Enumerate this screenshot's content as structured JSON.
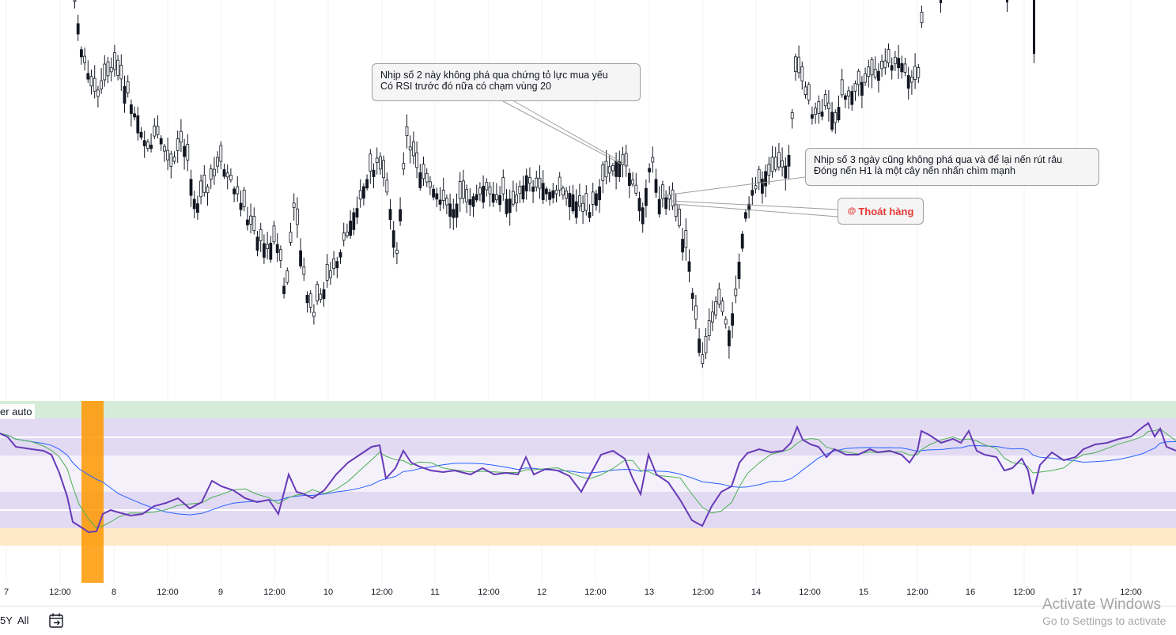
{
  "colors": {
    "candle": "#131722",
    "rsi_line": "#673ab7",
    "rsi_ma_fast": "#4caf50",
    "rsi_ma_slow": "#2962ff",
    "band_overbought_extreme": "#d6ecd8",
    "band_overbought": "#e2daf3",
    "band_mid": "#f4f1fb",
    "band_oversold": "#e2daf3",
    "band_oversold_extreme": "#ffe9c7",
    "highlight_column": "#ff9800",
    "annotation_line": "#9e9e9e",
    "exit_text": "#e53935",
    "grid": "#f0f3fa"
  },
  "annotations": [
    {
      "id": "note-1",
      "lines": [
        "Nhịp số 2 này không phá qua chứng tỏ lực mua yếu",
        "Có RSI trước đó nữa có chạm vùng 20"
      ]
    },
    {
      "id": "note-2",
      "lines": [
        "Nhịp số 3 ngày cũng không phá qua và để lại nến rút râu",
        "Đóng nến H1 là một cây nến nhấn chìm mạnh"
      ]
    }
  ],
  "exit_label": {
    "icon": "at-sign-icon",
    "icon_glyph": "@",
    "text": "Thoát hàng"
  },
  "indicator_pane": {
    "label": "er auto"
  },
  "time_axis": {
    "labels": [
      "7",
      "12:00",
      "8",
      "12:00",
      "9",
      "12:00",
      "10",
      "12:00",
      "11",
      "12:00",
      "12",
      "12:00",
      "13",
      "12:00",
      "14",
      "12:00",
      "15",
      "12:00",
      "16",
      "12:00",
      "17",
      "12:00"
    ]
  },
  "bottom_bar": {
    "range_5y": "5Y",
    "range_all": "All",
    "date_range_icon": "calendar-arrow-icon"
  },
  "watermark": {
    "title": "Activate Windows",
    "subtitle": "Go to Settings to activate"
  }
}
